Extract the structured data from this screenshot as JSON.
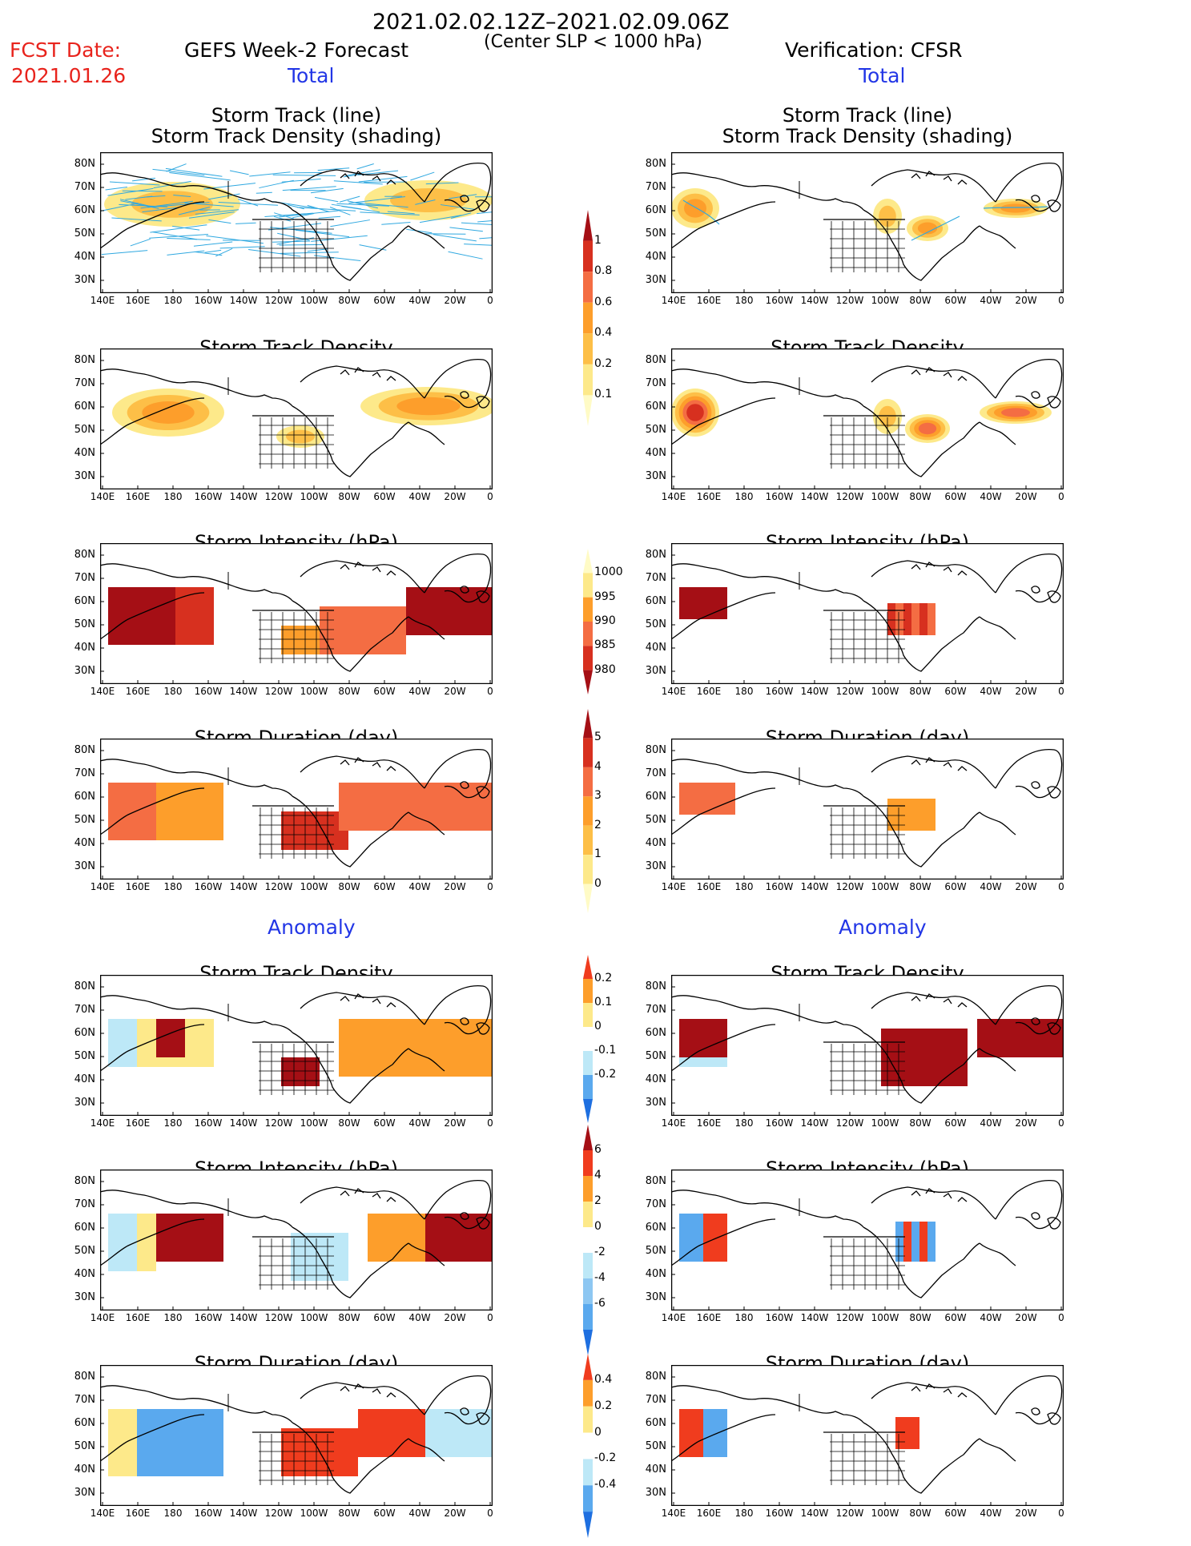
{
  "header": {
    "date_range": "2021.02.02.12Z–2021.02.09.06Z",
    "fcst_label": "FCST Date:",
    "fcst_date": "2021.01.26",
    "left_title": "GEFS Week-2 Forecast",
    "subtitle": "(Center SLP < 1000 hPa)",
    "right_title": "Verification: CFSR"
  },
  "sections": {
    "total": "Total",
    "anomaly": "Anomaly"
  },
  "axes": {
    "y_labels": [
      "80N",
      "70N",
      "60N",
      "50N",
      "40N",
      "30N"
    ],
    "x_labels": [
      "140E",
      "160E",
      "180",
      "160W",
      "140W",
      "120W",
      "100W",
      "80W",
      "60W",
      "40W",
      "20W",
      "0"
    ]
  },
  "panels": [
    {
      "id": "track",
      "title1": "Storm Track (line)",
      "title2": "Storm Track Density (shading)"
    },
    {
      "id": "density",
      "title1": "Storm Track Density"
    },
    {
      "id": "intensity",
      "title1": "Storm Intensity (hPa)"
    },
    {
      "id": "duration",
      "title1": "Storm Duration (day)"
    },
    {
      "id": "density_anom",
      "title1": "Storm Track Density"
    },
    {
      "id": "intensity_anom",
      "title1": "Storm Intensity (hPa)"
    },
    {
      "id": "duration_anom",
      "title1": "Storm Duration (day)"
    }
  ],
  "colorbars": {
    "density": {
      "labels": [
        "1",
        "0.8",
        "0.6",
        "0.4",
        "0.2",
        "0.1"
      ],
      "colors": [
        "#a50f15",
        "#d7301f",
        "#f46d43",
        "#fd9e2b",
        "#fdbf47",
        "#fde98a",
        "#fffbc6"
      ]
    },
    "intensity": {
      "labels": [
        "1000",
        "995",
        "990",
        "985",
        "980"
      ],
      "colors": [
        "#fffbc6",
        "#fde98a",
        "#fd9e2b",
        "#f46d43",
        "#d7301f",
        "#a50f15"
      ]
    },
    "duration": {
      "labels": [
        "5",
        "4",
        "3",
        "2",
        "1",
        "0"
      ],
      "colors": [
        "#a50f15",
        "#d7301f",
        "#f46d43",
        "#fd9e2b",
        "#fdbf47",
        "#fde98a",
        "#fffbc6"
      ]
    },
    "density_anom": {
      "labels": [
        "0.2",
        "0.1",
        "0",
        "-0.1",
        "-0.2"
      ],
      "colors": [
        "#f03c1e",
        "#fd9e2b",
        "#fde98a",
        "#ffffff",
        "#bde8f7",
        "#5aa9ee",
        "#1e6fe0"
      ]
    },
    "intensity_anom": {
      "labels": [
        "6",
        "4",
        "2",
        "0",
        "-2",
        "-4",
        "-6"
      ],
      "colors": [
        "#a50f15",
        "#f03c1e",
        "#fd9e2b",
        "#fde98a",
        "#ffffff",
        "#bde8f7",
        "#8dc7f2",
        "#5aa9ee",
        "#1e6fe0"
      ]
    },
    "duration_anom": {
      "labels": [
        "0.4",
        "0.2",
        "0",
        "-0.2",
        "-0.4"
      ],
      "colors": [
        "#f03c1e",
        "#fd9e2b",
        "#fde98a",
        "#ffffff",
        "#bde8f7",
        "#5aa9ee",
        "#1e6fe0"
      ]
    }
  },
  "colors": {
    "track_line": "#2fa8e0",
    "red_text": "#e8231c",
    "blue_text": "#2236e6"
  }
}
